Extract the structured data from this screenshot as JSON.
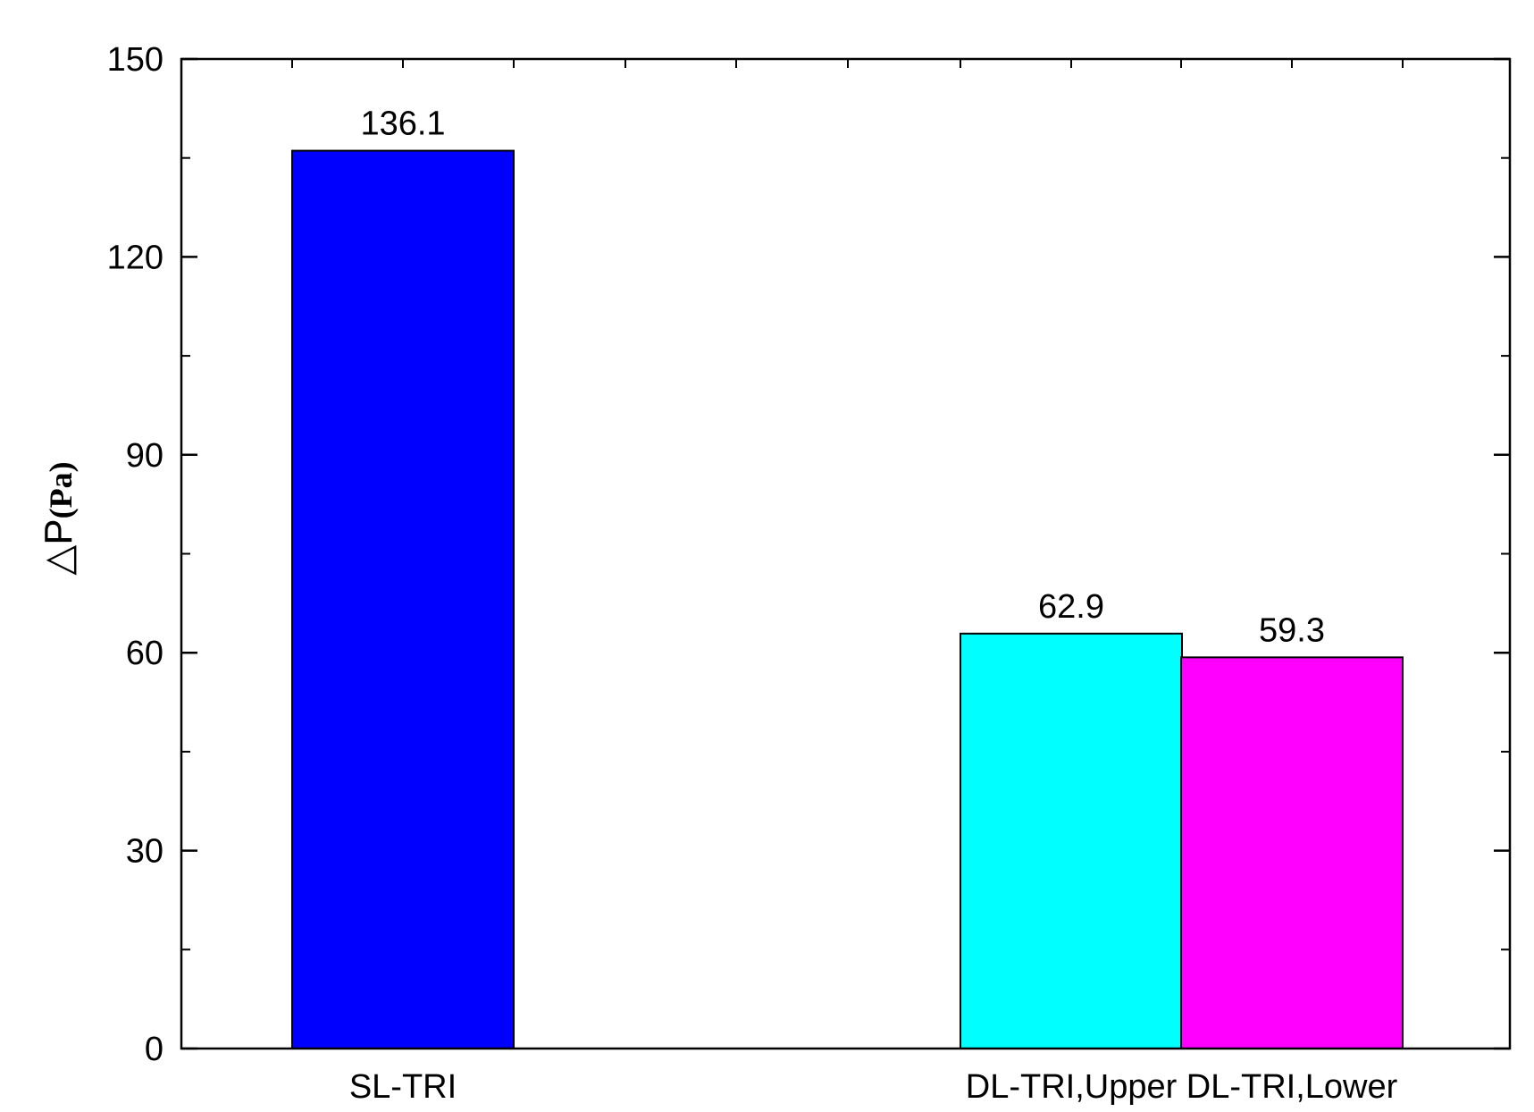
{
  "chart_data": {
    "type": "bar",
    "categories": [
      "SL-TRI",
      "DL-TRI,Upper",
      "DL-TRI,Lower"
    ],
    "values": [
      136.1,
      62.9,
      59.3
    ],
    "value_labels": [
      "136.1",
      "62.9",
      "59.3"
    ],
    "colors": [
      "#0000ff",
      "#00ffff",
      "#ff00ff"
    ],
    "ylabel": "△P",
    "ylabel_unit": "(Pa)",
    "ylim": [
      0,
      150
    ],
    "yticks": [
      0,
      30,
      60,
      90,
      120,
      150
    ],
    "grid": false
  }
}
